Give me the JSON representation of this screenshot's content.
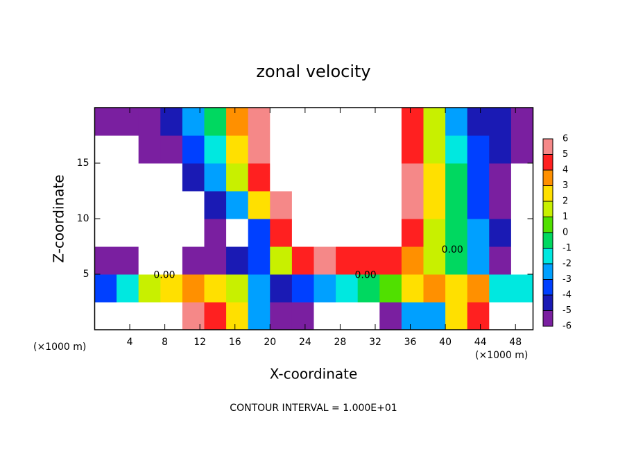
{
  "chart_data": {
    "type": "heatmap",
    "title": "zonal velocity",
    "xlabel": "X-coordinate",
    "ylabel": "Z-coordinate",
    "x_unit_labels": [
      "(×1000 m)",
      "(×1000 m)"
    ],
    "footer": "CONTOUR INTERVAL = 1.000E+01",
    "xlim": [
      0,
      50
    ],
    "ylim": [
      0,
      20
    ],
    "xticks": [
      4,
      8,
      12,
      16,
      20,
      24,
      28,
      32,
      36,
      40,
      44,
      48
    ],
    "yticks": [
      5,
      10,
      15
    ],
    "x": [
      1.25,
      3.75,
      6.25,
      8.75,
      11.25,
      13.75,
      16.25,
      18.75,
      21.25,
      23.75,
      26.25,
      28.75,
      31.25,
      33.75,
      36.25,
      38.75,
      41.25,
      43.75,
      46.25,
      48.75
    ],
    "y": [
      1.25,
      3.75,
      6.25,
      8.75,
      11.25,
      13.75,
      16.25,
      18.75
    ],
    "z": [
      [
        8,
        8,
        8,
        8,
        6,
        5,
        3,
        -2,
        -5,
        -5,
        -8,
        -8,
        -8,
        -6,
        -2,
        -2,
        3,
        5,
        8,
        8
      ],
      [
        -3,
        -1,
        2,
        3,
        4,
        3,
        2,
        -2,
        -4,
        -3,
        -2,
        -1,
        0,
        1,
        3,
        4,
        3,
        4,
        -1,
        -1
      ],
      [
        -5,
        -6,
        -8,
        -7,
        -6,
        -5,
        -4,
        -3,
        2,
        5,
        6,
        5,
        5,
        5,
        4,
        2,
        0,
        -2,
        -5,
        -8
      ],
      [
        -7,
        -8,
        -8,
        -8,
        -8,
        -5,
        -8,
        -3,
        5,
        7,
        8,
        10,
        8,
        7,
        5,
        2,
        0,
        -2,
        -4,
        -8
      ],
      [
        -8,
        -10,
        -10,
        -8,
        -8,
        -4,
        -2,
        3,
        6,
        8,
        8,
        10,
        8,
        8,
        6,
        3,
        0,
        -3,
        -6,
        -8
      ],
      [
        -8,
        -10,
        -8,
        -8,
        -4,
        -2,
        2,
        5,
        8,
        8,
        8,
        8,
        8,
        8,
        6,
        3,
        0,
        -3,
        -5,
        -8
      ],
      [
        -8,
        -8,
        -6,
        -5,
        -3,
        -1,
        3,
        6,
        8,
        8,
        8,
        8,
        8,
        8,
        5,
        2,
        -1,
        -3,
        -4,
        -5
      ],
      [
        -5,
        -5,
        -5,
        -4,
        -2,
        0,
        4,
        6,
        8,
        8,
        8,
        8,
        8,
        8,
        5,
        2,
        -2,
        -4,
        -4,
        -5
      ]
    ],
    "levels": [
      -6,
      -5,
      -4,
      -3,
      -2,
      -1,
      0,
      1,
      2,
      3,
      4,
      5,
      6
    ],
    "colors": [
      "#7a1fa0",
      "#1a1ab4",
      "#0040ff",
      "#00a0ff",
      "#00e8e0",
      "#00d860",
      "#50e000",
      "#c8f000",
      "#ffe000",
      "#ff9000",
      "#ff2020",
      "#f58888"
    ],
    "contour_labels": [
      {
        "text": "0.00",
        "x": 7.95,
        "y": 4.9
      },
      {
        "text": "0.00",
        "x": 30.9,
        "y": 4.9
      },
      {
        "text": "0.00",
        "x": 40.8,
        "y": 7.2
      }
    ]
  }
}
